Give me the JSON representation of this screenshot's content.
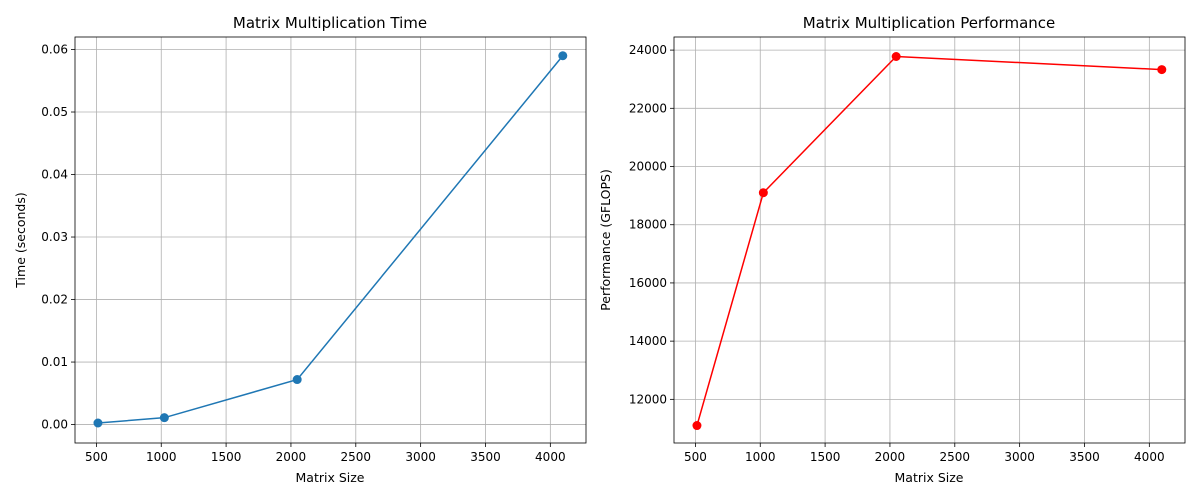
{
  "chart_data": [
    {
      "type": "line",
      "title": "Matrix Multiplication Time",
      "xlabel": "Matrix Size",
      "ylabel": "Time (seconds)",
      "xlim": [
        335,
        4275
      ],
      "ylim": [
        -0.00295,
        0.062
      ],
      "xticks": [
        500,
        1000,
        1500,
        2000,
        2500,
        3000,
        3500,
        4000
      ],
      "xtick_labels": [
        "500",
        "1000",
        "1500",
        "2000",
        "2500",
        "3000",
        "3500",
        "4000"
      ],
      "yticks": [
        0.0,
        0.01,
        0.02,
        0.03,
        0.04,
        0.05,
        0.06
      ],
      "ytick_labels": [
        "0.00",
        "0.01",
        "0.02",
        "0.03",
        "0.04",
        "0.05",
        "0.06"
      ],
      "grid": true,
      "series": [
        {
          "color": "#1f77b4",
          "marker": "circle",
          "x": [
            512,
            1024,
            2048,
            4096
          ],
          "y": [
            0.00025,
            0.0011,
            0.0072,
            0.059
          ]
        }
      ]
    },
    {
      "type": "line",
      "title": "Matrix Multiplication Performance",
      "xlabel": "Matrix Size",
      "ylabel": "Performance (GFLOPS)",
      "xlim": [
        335,
        4275
      ],
      "ylim": [
        10500,
        24450
      ],
      "xticks": [
        500,
        1000,
        1500,
        2000,
        2500,
        3000,
        3500,
        4000
      ],
      "xtick_labels": [
        "500",
        "1000",
        "1500",
        "2000",
        "2500",
        "3000",
        "3500",
        "4000"
      ],
      "yticks": [
        12000,
        14000,
        16000,
        18000,
        20000,
        22000,
        24000
      ],
      "ytick_labels": [
        "12000",
        "14000",
        "16000",
        "18000",
        "20000",
        "22000",
        "24000"
      ],
      "grid": true,
      "series": [
        {
          "color": "#ff0000",
          "marker": "circle",
          "x": [
            512,
            1024,
            2048,
            4096
          ],
          "y": [
            11100,
            19100,
            23780,
            23330
          ]
        }
      ]
    }
  ]
}
